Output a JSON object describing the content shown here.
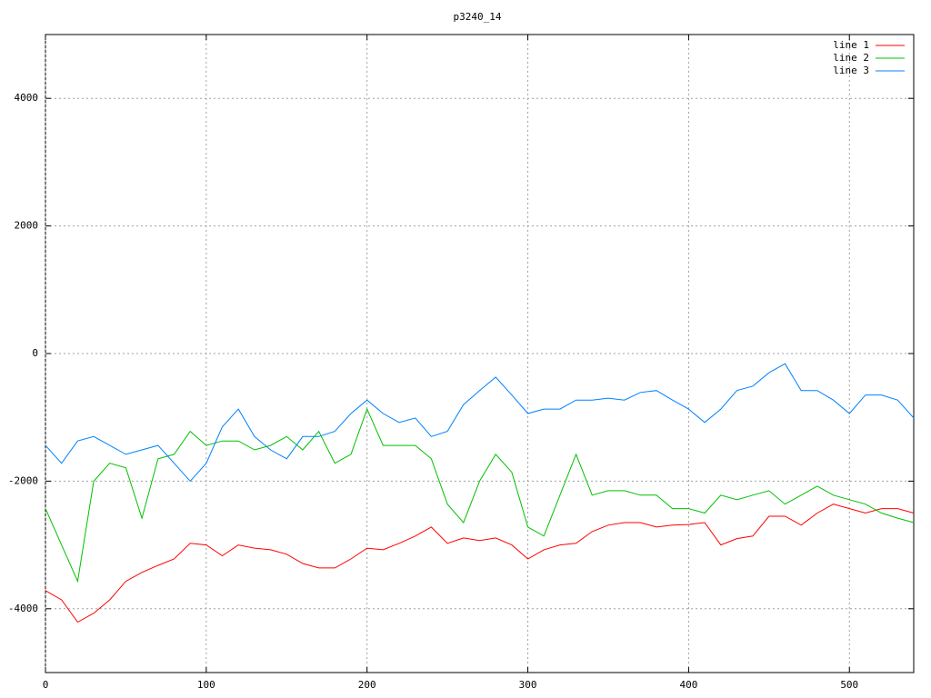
{
  "chart_data": {
    "type": "line",
    "title": "p3240_14",
    "x": [
      0,
      10,
      20,
      30,
      40,
      50,
      60,
      70,
      80,
      90,
      100,
      110,
      120,
      130,
      140,
      150,
      160,
      170,
      180,
      190,
      200,
      210,
      220,
      230,
      240,
      250,
      260,
      270,
      280,
      290,
      300,
      310,
      320,
      330,
      340,
      350,
      360,
      370,
      380,
      390,
      400,
      410,
      420,
      430,
      440,
      450,
      460,
      470,
      480,
      490,
      500,
      510,
      520,
      530,
      540
    ],
    "series": [
      {
        "name": "line 1",
        "color": "#ff0000",
        "values": [
          -3715,
          -3860,
          -4210,
          -4070,
          -3860,
          -3570,
          -3430,
          -3320,
          -3220,
          -2975,
          -3000,
          -3170,
          -3000,
          -3050,
          -3075,
          -3145,
          -3290,
          -3360,
          -3360,
          -3220,
          -3050,
          -3075,
          -2975,
          -2860,
          -2720,
          -2975,
          -2890,
          -2930,
          -2890,
          -3000,
          -3220,
          -3075,
          -3000,
          -2975,
          -2790,
          -2690,
          -2650,
          -2650,
          -2720,
          -2690,
          -2680,
          -2650,
          -3000,
          -2900,
          -2860,
          -2550,
          -2550,
          -2690,
          -2500,
          -2360,
          -2430,
          -2500,
          -2430,
          -2430,
          -2500
        ]
      },
      {
        "name": "line 2",
        "color": "#00c000",
        "values": [
          -2430,
          -3000,
          -3570,
          -2000,
          -1720,
          -1790,
          -2580,
          -1650,
          -1580,
          -1220,
          -1440,
          -1370,
          -1370,
          -1510,
          -1440,
          -1300,
          -1510,
          -1220,
          -1720,
          -1580,
          -870,
          -1440,
          -1440,
          -1440,
          -1650,
          -2360,
          -2650,
          -2000,
          -1580,
          -1860,
          -2720,
          -2860,
          -2220,
          -1580,
          -2220,
          -2150,
          -2150,
          -2220,
          -2220,
          -2430,
          -2430,
          -2500,
          -2220,
          -2290,
          -2220,
          -2150,
          -2360,
          -2220,
          -2080,
          -2220,
          -2290,
          -2360,
          -2500,
          -2580,
          -2650
        ]
      },
      {
        "name": "line 3",
        "color": "#0080ff",
        "values": [
          -1440,
          -1720,
          -1370,
          -1300,
          -1440,
          -1580,
          -1510,
          -1440,
          -1720,
          -2000,
          -1720,
          -1150,
          -870,
          -1300,
          -1510,
          -1650,
          -1300,
          -1300,
          -1220,
          -940,
          -730,
          -940,
          -1080,
          -1010,
          -1300,
          -1220,
          -800,
          -580,
          -370,
          -650,
          -940,
          -870,
          -870,
          -730,
          -730,
          -700,
          -730,
          -610,
          -580,
          -730,
          -870,
          -1080,
          -870,
          -580,
          -510,
          -300,
          -160,
          -580,
          -580,
          -730,
          -940,
          -650,
          -650,
          -730,
          -1010
        ]
      }
    ],
    "xlim": [
      0,
      540
    ],
    "ylim": [
      -5000,
      5000
    ],
    "xticks": [
      0,
      100,
      200,
      300,
      400,
      500
    ],
    "yticks": [
      -4000,
      -2000,
      0,
      2000,
      4000
    ],
    "grid": true,
    "legend": "top-right"
  }
}
